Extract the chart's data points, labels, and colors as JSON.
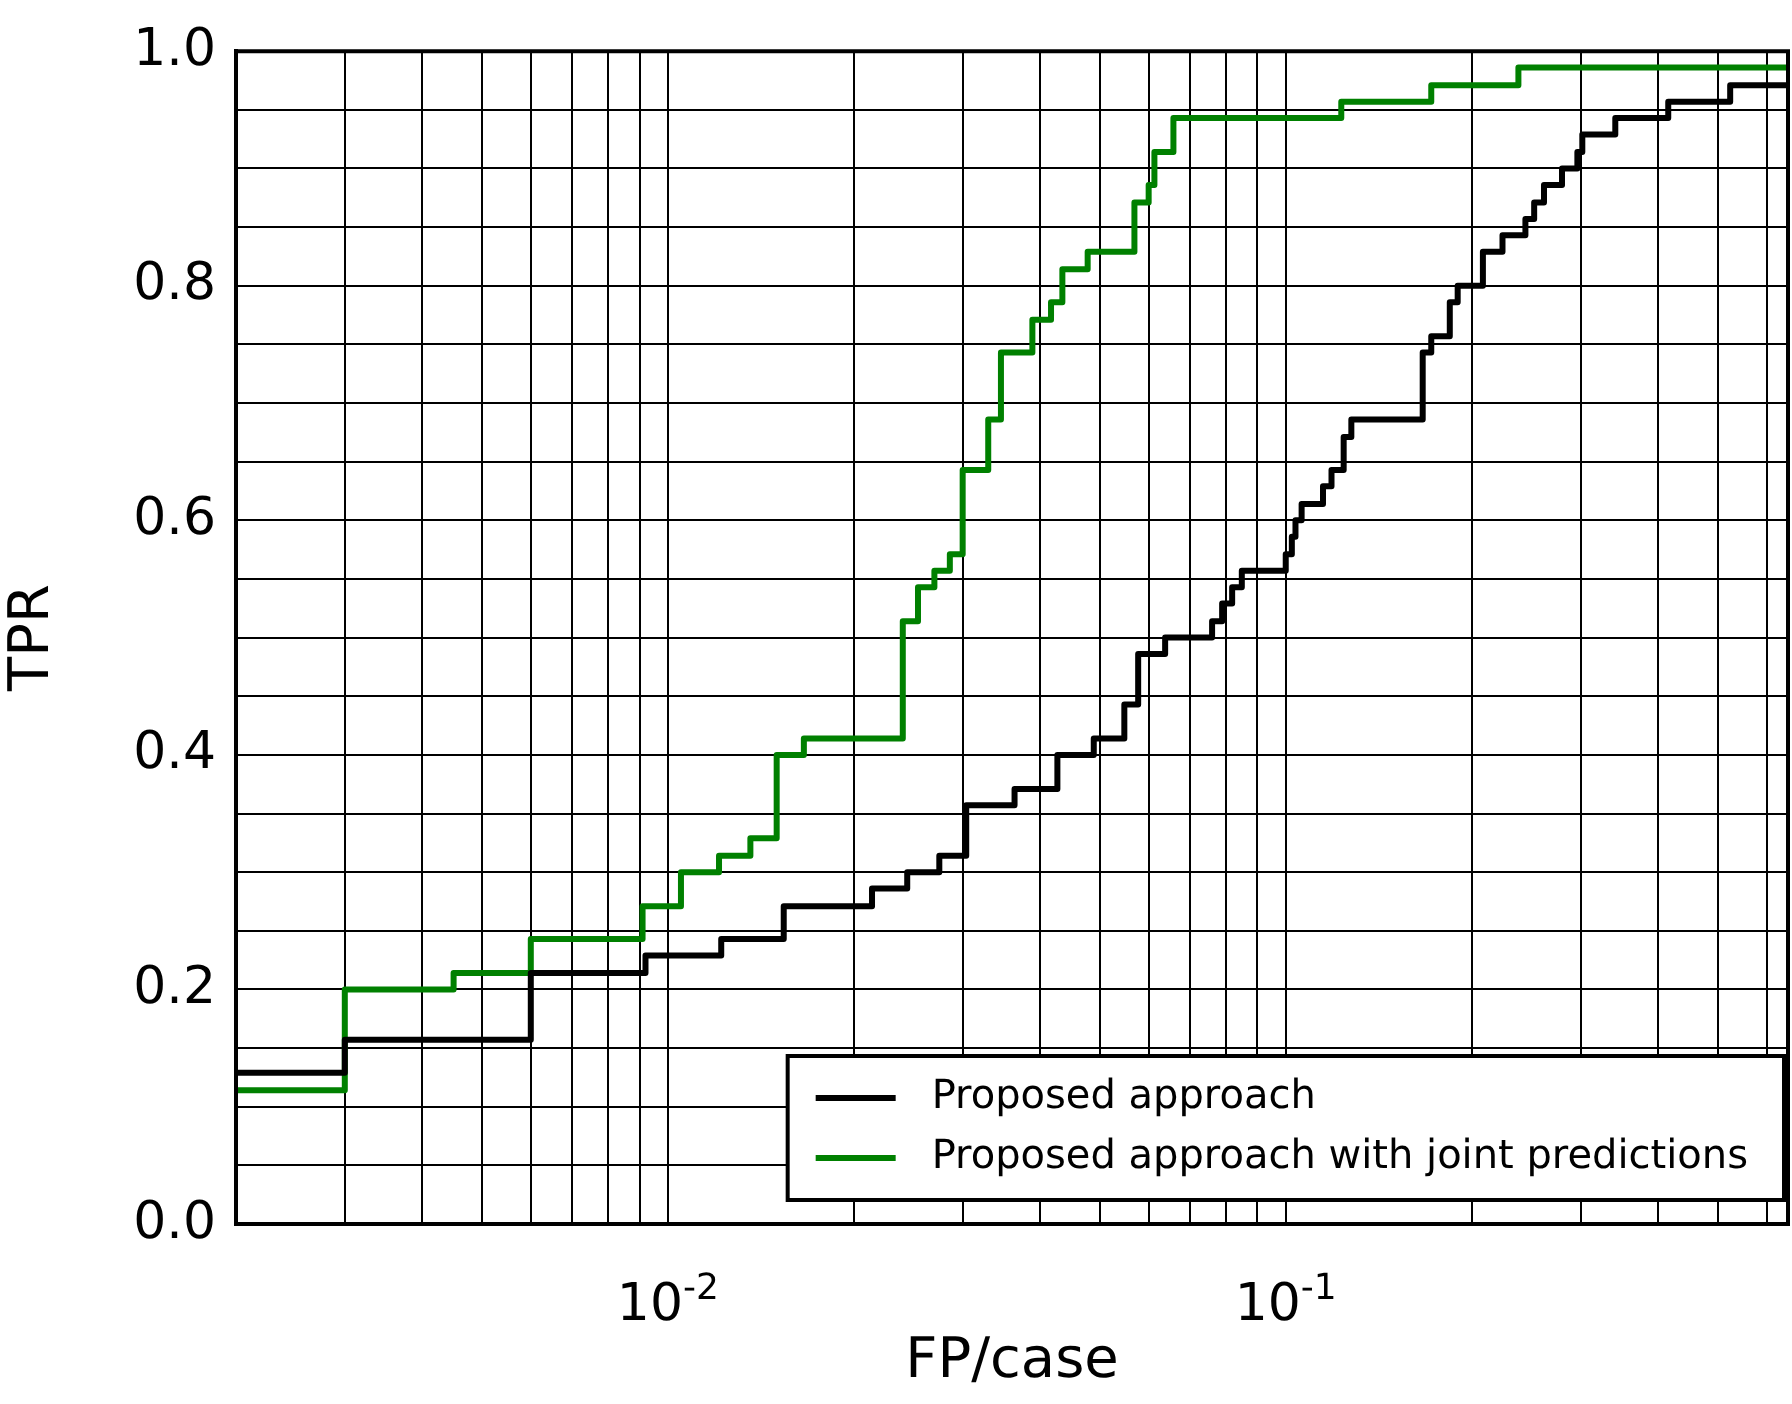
{
  "chart_data": {
    "type": "step",
    "xlabel": "FP/case",
    "ylabel": "TPR",
    "log": "x",
    "grid": true,
    "legend": "bottom right",
    "marker": "none",
    "line_style": "solid",
    "xlim": [
      0.002,
      0.65
    ],
    "xticks": [
      {
        "value": 0.003,
        "label": null
      },
      {
        "value": 0.004,
        "label": null
      },
      {
        "value": 0.005,
        "label": null
      },
      {
        "value": 0.006,
        "label": null
      },
      {
        "value": 0.007,
        "label": null
      },
      {
        "value": 0.008,
        "label": null
      },
      {
        "value": 0.009,
        "label": null
      },
      {
        "value": 0.01,
        "label": "10$^{-2}$"
      },
      {
        "value": 0.02,
        "label": null
      },
      {
        "value": 0.03,
        "label": null
      },
      {
        "value": 0.04,
        "label": null
      },
      {
        "value": 0.05,
        "label": null
      },
      {
        "value": 0.06,
        "label": null
      },
      {
        "value": 0.07,
        "label": null
      },
      {
        "value": 0.08,
        "label": null
      },
      {
        "value": 0.09,
        "label": null
      },
      {
        "value": 0.1,
        "label": "10$^{-1}$"
      },
      {
        "value": 0.2,
        "label": null
      },
      {
        "value": 0.3,
        "label": null
      },
      {
        "value": 0.4,
        "label": null
      },
      {
        "value": 0.5,
        "label": null
      },
      {
        "value": 0.6,
        "label": null
      }
    ],
    "ylim": [
      0,
      1
    ],
    "yticks": [
      {
        "value": 0,
        "label": "0.0"
      },
      {
        "value": 0.05,
        "label": null
      },
      {
        "value": 0.1,
        "label": null
      },
      {
        "value": 0.15,
        "label": null
      },
      {
        "value": 0.2,
        "label": "0.2"
      },
      {
        "value": 0.25,
        "label": null
      },
      {
        "value": 0.3,
        "label": null
      },
      {
        "value": 0.35,
        "label": null
      },
      {
        "value": 0.4,
        "label": "0.4"
      },
      {
        "value": 0.45,
        "label": null
      },
      {
        "value": 0.5,
        "label": null
      },
      {
        "value": 0.55,
        "label": null
      },
      {
        "value": 0.6,
        "label": "0.6"
      },
      {
        "value": 0.65,
        "label": null
      },
      {
        "value": 0.7,
        "label": null
      },
      {
        "value": 0.75,
        "label": null
      },
      {
        "value": 0.8,
        "label": "0.8"
      },
      {
        "value": 0.85,
        "label": null
      },
      {
        "value": 0.9,
        "label": null
      },
      {
        "value": 0.95,
        "label": null
      },
      {
        "value": 1,
        "label": "1.0"
      }
    ],
    "series": [
      {
        "name": "Proposed approach",
        "color": "#000000",
        "x": [
          0.002,
          0.003,
          0.006,
          0.0092,
          0.0122,
          0.0154,
          0.0214,
          0.0244,
          0.0275,
          0.0304,
          0.0364,
          0.0427,
          0.0489,
          0.0548,
          0.0577,
          0.0638,
          0.076,
          0.0789,
          0.0819,
          0.0849,
          0.1,
          0.1023,
          0.1037,
          0.1061,
          0.1149,
          0.1186,
          0.1241,
          0.1277,
          0.1666,
          0.172,
          0.1843,
          0.1898,
          0.2085,
          0.2243,
          0.2443,
          0.2524,
          0.2618,
          0.28,
          0.2965,
          0.302,
          0.3415,
          0.416,
          0.524,
          0.65
        ],
        "values": [
          0.129,
          0.157,
          0.214,
          0.229,
          0.243,
          0.271,
          0.286,
          0.3,
          0.314,
          0.357,
          0.371,
          0.4,
          0.414,
          0.443,
          0.486,
          0.5,
          0.514,
          0.529,
          0.543,
          0.557,
          0.571,
          0.586,
          0.6,
          0.614,
          0.629,
          0.643,
          0.671,
          0.686,
          0.743,
          0.757,
          0.786,
          0.8,
          0.829,
          0.843,
          0.857,
          0.871,
          0.886,
          0.9,
          0.914,
          0.929,
          0.943,
          0.957,
          0.971,
          0.971
        ]
      },
      {
        "name": "Proposed approach with joint predictions",
        "color": "#008000",
        "x": [
          0.002,
          0.003,
          0.0045,
          0.006,
          0.0091,
          0.0105,
          0.0121,
          0.0136,
          0.015,
          0.0166,
          0.024,
          0.0254,
          0.027,
          0.0286,
          0.03,
          0.033,
          0.0346,
          0.0389,
          0.0417,
          0.0435,
          0.0478,
          0.0569,
          0.06,
          0.0613,
          0.0658,
          0.123,
          0.172,
          0.238,
          0.65
        ],
        "values": [
          0.114,
          0.2,
          0.214,
          0.243,
          0.271,
          0.3,
          0.314,
          0.329,
          0.4,
          0.414,
          0.514,
          0.543,
          0.557,
          0.571,
          0.643,
          0.686,
          0.743,
          0.771,
          0.786,
          0.814,
          0.829,
          0.871,
          0.886,
          0.914,
          0.943,
          0.957,
          0.971,
          0.986,
          0.986
        ]
      }
    ]
  }
}
